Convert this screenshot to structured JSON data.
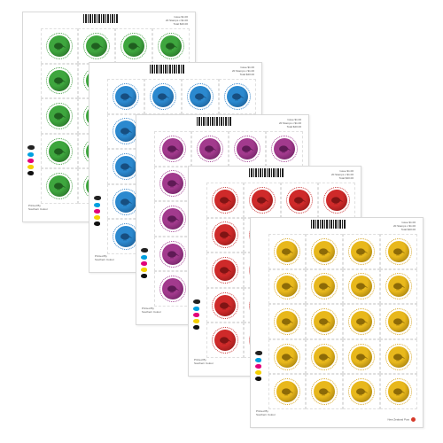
{
  "sheets": [
    {
      "name": "green",
      "ink": "#2f8a2f",
      "coin": "#3ea63e",
      "coin_dark": "#1f5e1f",
      "perf": "#49a049"
    },
    {
      "name": "blue",
      "ink": "#1f6fb4",
      "coin": "#2b89cf",
      "coin_dark": "#174e80",
      "perf": "#3a86c8"
    },
    {
      "name": "purple",
      "ink": "#8a2a7a",
      "coin": "#a23a8d",
      "coin_dark": "#5e1a55",
      "perf": "#a44696"
    },
    {
      "name": "red",
      "ink": "#b22020",
      "coin": "#cf2a2a",
      "coin_dark": "#7f1414",
      "perf": "#cc3a3a"
    },
    {
      "name": "gold",
      "ink": "#b28a10",
      "coin": "#e8b81c",
      "coin_dark": "#8c6a08",
      "perf": "#d8a826"
    }
  ],
  "sheet_meta_lines": [
    "Issue $1.00",
    "20 Stamps x $1.00",
    "Total $20.00"
  ],
  "sheet_footer_lines": [
    "Printed By",
    "Southern Colour"
  ],
  "sheet_post_label": "New Zealand Post",
  "swatch_colors": [
    "#00a0e0",
    "#e2007a",
    "#f5d000",
    "#111111"
  ]
}
